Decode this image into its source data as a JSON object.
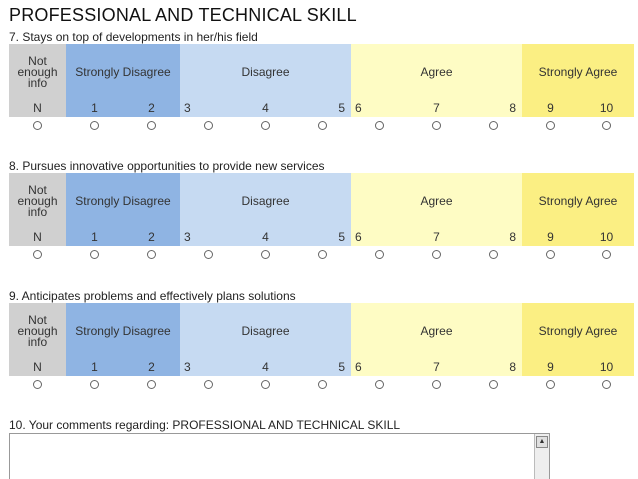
{
  "section_title": "PROFESSIONAL AND TECHNICAL SKILL",
  "scale_headers": {
    "not_enough_info": "Not enough info",
    "strongly_disagree": "Strongly Disagree",
    "disagree": "Disagree",
    "agree": "Agree",
    "strongly_agree": "Strongly Agree"
  },
  "scale_numbers": [
    "N",
    "1",
    "2",
    "3",
    "4",
    "5",
    "6",
    "7",
    "8",
    "9",
    "10"
  ],
  "questions": [
    {
      "label": "7. Stays on top of developments in her/his field",
      "selected": null
    },
    {
      "label": "8. Pursues innovative opportunities to provide new services",
      "selected": null
    },
    {
      "label": "9. Anticipates problems and effectively plans solutions",
      "selected": null
    }
  ],
  "comments": {
    "label": "10. Your comments regarding: PROFESSIONAL AND TECHNICAL SKILL",
    "value": ""
  },
  "colors": {
    "not_enough_info": "#d0d0d0",
    "strongly_disagree": "#8fb4e3",
    "disagree": "#c6daf2",
    "agree": "#fefcc4",
    "strongly_agree": "#fbef83"
  }
}
